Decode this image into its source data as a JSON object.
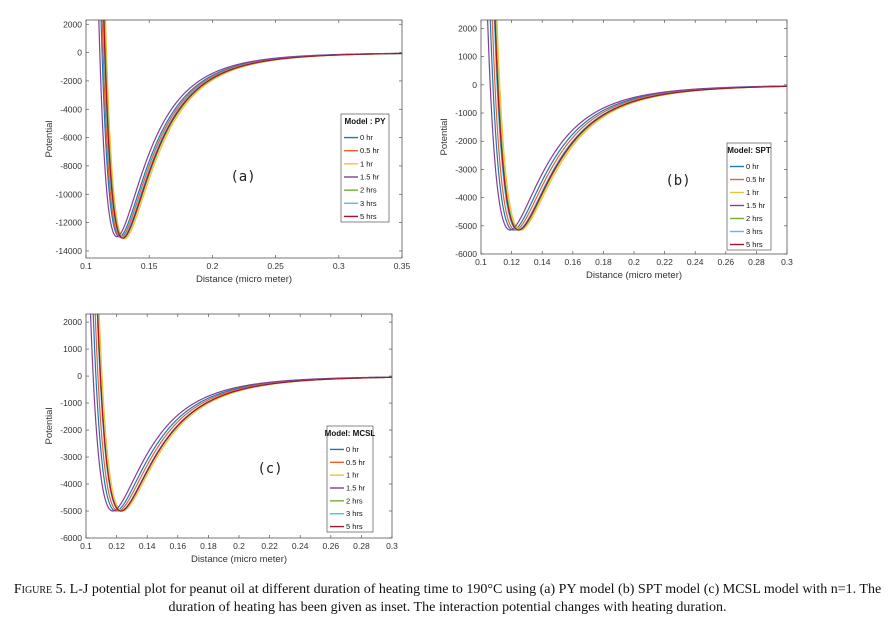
{
  "chart_data": [
    {
      "type": "line",
      "panel_label": "(a)",
      "xlabel": "Distance (micro meter)",
      "ylabel": "Potential",
      "xlim": [
        0.1,
        0.35
      ],
      "ylim": [
        -14500,
        2300
      ],
      "xticks": [
        0.1,
        0.15,
        0.2,
        0.25,
        0.3,
        0.35
      ],
      "xtick_labels": [
        "0.1",
        "0.15",
        "0.2",
        "0.25",
        "0.3",
        "0.35"
      ],
      "yticks": [
        2000,
        0,
        -2000,
        -4000,
        -6000,
        -8000,
        -10000,
        -12000,
        -14000
      ],
      "ytick_labels": [
        "2000",
        "0",
        "-2000",
        "-4000",
        "-6000",
        "-8000",
        "-10000",
        "-12000",
        "-14000"
      ],
      "legend": {
        "title": "Model : PY",
        "position": "right-middle"
      },
      "grid": false,
      "series": [
        {
          "name": "0 hr",
          "color": "#1f77b4",
          "well_depth": -13000,
          "r_min": 0.1265
        },
        {
          "name": "0.5 hr",
          "color": "#e8602c",
          "well_depth": -13050,
          "r_min": 0.1275
        },
        {
          "name": "1 hr",
          "color": "#f1c232",
          "well_depth": -13150,
          "r_min": 0.1305
        },
        {
          "name": "1.5 hr",
          "color": "#7e3f98",
          "well_depth": -13000,
          "r_min": 0.1245
        },
        {
          "name": "2 hrs",
          "color": "#77ac30",
          "well_depth": -13100,
          "r_min": 0.1295
        },
        {
          "name": "3 hrs",
          "color": "#4dbeee",
          "well_depth": -13050,
          "r_min": 0.1285
        },
        {
          "name": "5 hrs",
          "color": "#a2142f",
          "well_depth": -13100,
          "r_min": 0.129
        }
      ]
    },
    {
      "type": "line",
      "panel_label": "(b)",
      "xlabel": "Distance (micro meter)",
      "ylabel": "Potential",
      "xlim": [
        0.1,
        0.3
      ],
      "ylim": [
        -6000,
        2300
      ],
      "xticks": [
        0.1,
        0.12,
        0.14,
        0.16,
        0.18,
        0.2,
        0.22,
        0.24,
        0.26,
        0.28,
        0.3
      ],
      "xtick_labels": [
        "0.1",
        "0.12",
        "0.14",
        "0.16",
        "0.18",
        "0.2",
        "0.22",
        "0.24",
        "0.26",
        "0.28",
        "0.3"
      ],
      "yticks": [
        2000,
        1000,
        0,
        -1000,
        -2000,
        -3000,
        -4000,
        -5000,
        -6000
      ],
      "ytick_labels": [
        "2000",
        "1000",
        "0",
        "-1000",
        "-2000",
        "-3000",
        "-4000",
        "-5000",
        "-6000"
      ],
      "legend": {
        "title": "Model: SPT",
        "position": "right-middle"
      },
      "grid": false,
      "series": [
        {
          "name": "0 hr",
          "color": "#1f77b4",
          "well_depth": -5150,
          "r_min": 0.121
        },
        {
          "name": "0.5 hr",
          "color": "#e8602c",
          "well_depth": -5150,
          "r_min": 0.1225
        },
        {
          "name": "1 hr",
          "color": "#f1c232",
          "well_depth": -5150,
          "r_min": 0.126
        },
        {
          "name": "1.5 hr",
          "color": "#7e3f98",
          "well_depth": -5150,
          "r_min": 0.119
        },
        {
          "name": "2 hrs",
          "color": "#77ac30",
          "well_depth": -5150,
          "r_min": 0.125
        },
        {
          "name": "3 hrs",
          "color": "#4dbeee",
          "well_depth": -5150,
          "r_min": 0.124
        },
        {
          "name": "5 hrs",
          "color": "#a2142f",
          "well_depth": -5150,
          "r_min": 0.1245
        }
      ]
    },
    {
      "type": "line",
      "panel_label": "(c)",
      "xlabel": "Distance (micro meter)",
      "ylabel": "Potential",
      "xlim": [
        0.1,
        0.3
      ],
      "ylim": [
        -6000,
        2300
      ],
      "xticks": [
        0.1,
        0.12,
        0.14,
        0.16,
        0.18,
        0.2,
        0.22,
        0.24,
        0.26,
        0.28,
        0.3
      ],
      "xtick_labels": [
        "0.1",
        "0.12",
        "0.14",
        "0.16",
        "0.18",
        "0.2",
        "0.22",
        "0.24",
        "0.26",
        "0.28",
        "0.3"
      ],
      "yticks": [
        2000,
        1000,
        0,
        -1000,
        -2000,
        -3000,
        -4000,
        -5000,
        -6000
      ],
      "ytick_labels": [
        "2000",
        "1000",
        "0",
        "-1000",
        "-2000",
        "-3000",
        "-4000",
        "-5000",
        "-6000"
      ],
      "legend": {
        "title": "Model: MCSL",
        "position": "right-middle"
      },
      "grid": false,
      "series": [
        {
          "name": "0 hr",
          "color": "#1f77b4",
          "well_depth": -5000,
          "r_min": 0.1195
        },
        {
          "name": "0.5 hr",
          "color": "#e8602c",
          "well_depth": -5000,
          "r_min": 0.121
        },
        {
          "name": "1 hr",
          "color": "#f1c232",
          "well_depth": -5000,
          "r_min": 0.124
        },
        {
          "name": "1.5 hr",
          "color": "#7e3f98",
          "well_depth": -5000,
          "r_min": 0.1175
        },
        {
          "name": "2 hrs",
          "color": "#77ac30",
          "well_depth": -5000,
          "r_min": 0.123
        },
        {
          "name": "3 hrs",
          "color": "#4dbeee",
          "well_depth": -5000,
          "r_min": 0.1225
        },
        {
          "name": "5 hrs",
          "color": "#a2142f",
          "well_depth": -5000,
          "r_min": 0.1228
        }
      ]
    }
  ],
  "caption": {
    "figure_label": "Figure 5.",
    "text": "L-J potential plot for peanut oil at different duration of heating time to 190°C using (a) PY model (b) SPT model (c) MCSL model with n=1. The duration of heating has been given as inset. The interaction potential changes with heating duration."
  }
}
